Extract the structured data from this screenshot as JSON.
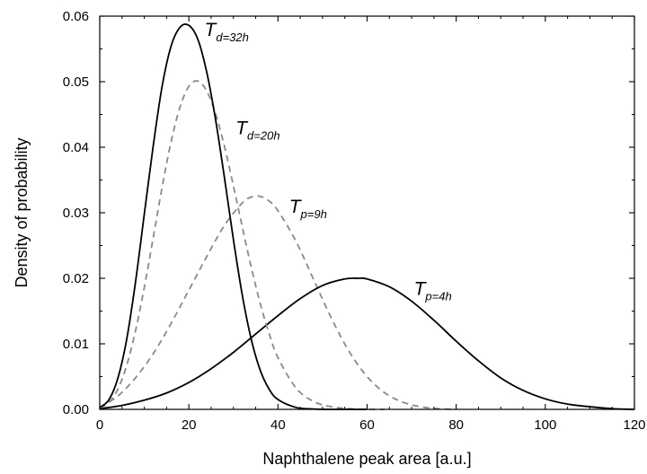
{
  "chart_data": {
    "type": "line",
    "xlabel": "Naphthalene peak area [a.u.]",
    "ylabel": "Density of probability",
    "xlim": [
      0,
      120
    ],
    "ylim": [
      0,
      0.06
    ],
    "x_ticks": [
      "0",
      "20",
      "40",
      "60",
      "80",
      "100",
      "120"
    ],
    "y_ticks": [
      "0.00",
      "0.01",
      "0.02",
      "0.03",
      "0.04",
      "0.05",
      "0.06"
    ],
    "grid": false,
    "series": [
      {
        "name": "T d=32h",
        "label_main": "T",
        "label_sub": "d=32h",
        "style": "solid",
        "color": "#000000",
        "x": [
          0,
          2,
          4,
          6,
          8,
          10,
          12,
          14,
          16,
          18,
          20,
          22,
          24,
          26,
          28,
          30,
          32,
          34,
          36,
          38,
          40,
          44,
          48,
          52,
          56,
          60
        ],
        "y": [
          0.0003,
          0.0014,
          0.0046,
          0.0105,
          0.0193,
          0.0298,
          0.0402,
          0.0493,
          0.0554,
          0.0583,
          0.0586,
          0.0565,
          0.0515,
          0.0442,
          0.0353,
          0.0259,
          0.0174,
          0.0107,
          0.006,
          0.0031,
          0.0015,
          0.0003,
          5e-05,
          0.0,
          0.0,
          0.0
        ]
      },
      {
        "name": "T d=20h",
        "label_main": "T",
        "label_sub": "d=20h",
        "style": "dashed",
        "color": "#8a8a8a",
        "x": [
          0,
          2,
          4,
          6,
          8,
          10,
          12,
          14,
          16,
          18,
          20,
          22,
          24,
          26,
          28,
          30,
          32,
          34,
          36,
          38,
          40,
          44,
          48,
          52,
          56,
          60,
          64
        ],
        "y": [
          0.0002,
          0.001,
          0.003,
          0.0066,
          0.0119,
          0.0186,
          0.0262,
          0.0339,
          0.0408,
          0.0461,
          0.0493,
          0.0501,
          0.0486,
          0.0451,
          0.0401,
          0.0341,
          0.0278,
          0.0217,
          0.0162,
          0.0116,
          0.0079,
          0.0033,
          0.0012,
          0.0004,
          0.0001,
          0.0,
          0.0
        ]
      },
      {
        "name": "T p=9h",
        "label_main": "T",
        "label_sub": "p=9h",
        "style": "dashed",
        "color": "#8a8a8a",
        "x": [
          0,
          4,
          8,
          12,
          16,
          20,
          24,
          28,
          32,
          34,
          36,
          38,
          40,
          44,
          48,
          52,
          56,
          60,
          64,
          68,
          72,
          76,
          80
        ],
        "y": [
          0.0003,
          0.002,
          0.0048,
          0.0085,
          0.0131,
          0.0182,
          0.0233,
          0.0281,
          0.0315,
          0.0324,
          0.0325,
          0.0318,
          0.0303,
          0.0257,
          0.0198,
          0.0139,
          0.0088,
          0.005,
          0.0025,
          0.0011,
          0.0004,
          0.0001,
          0.0
        ]
      },
      {
        "name": "T p=4h",
        "label_main": "T",
        "label_sub": "p=4h",
        "style": "solid",
        "color": "#000000",
        "x": [
          0,
          5,
          10,
          15,
          20,
          25,
          30,
          35,
          40,
          45,
          50,
          55,
          58,
          60,
          65,
          70,
          75,
          80,
          85,
          90,
          95,
          100,
          105,
          110,
          115,
          120
        ],
        "y": [
          0.0001,
          0.0006,
          0.0014,
          0.0025,
          0.0041,
          0.0062,
          0.0087,
          0.0115,
          0.0143,
          0.0169,
          0.0189,
          0.0199,
          0.02,
          0.0199,
          0.0187,
          0.0165,
          0.0136,
          0.0104,
          0.0074,
          0.0048,
          0.0029,
          0.0016,
          0.0008,
          0.0004,
          0.0001,
          0.0
        ]
      }
    ]
  }
}
